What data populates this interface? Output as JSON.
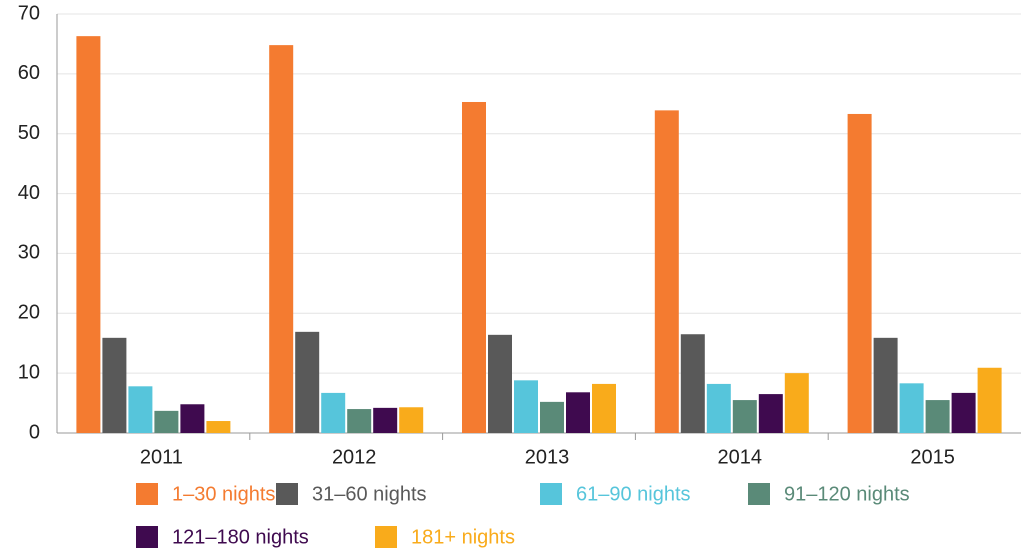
{
  "chart_data": {
    "type": "bar",
    "categories": [
      "2011",
      "2012",
      "2013",
      "2014",
      "2015"
    ],
    "series": [
      {
        "name": "1–30 nights",
        "color": "#f47b30",
        "values": [
          66.3,
          64.8,
          55.3,
          53.9,
          53.3
        ]
      },
      {
        "name": "31–60 nights",
        "color": "#595959",
        "values": [
          15.9,
          16.9,
          16.4,
          16.5,
          15.9
        ]
      },
      {
        "name": "61–90 nights",
        "color": "#56c5db",
        "values": [
          7.8,
          6.7,
          8.8,
          8.2,
          8.3
        ]
      },
      {
        "name": "91–120 nights",
        "color": "#5a8a78",
        "values": [
          3.7,
          4.0,
          5.2,
          5.5,
          5.5
        ]
      },
      {
        "name": "121–180 nights",
        "color": "#3f0a4f",
        "values": [
          4.8,
          4.2,
          6.8,
          6.5,
          6.7
        ]
      },
      {
        "name": "181+ nights",
        "color": "#f9ab1b",
        "values": [
          2.0,
          4.3,
          8.2,
          10.0,
          10.9
        ]
      }
    ],
    "ylim": [
      0,
      70
    ],
    "yticks": [
      0,
      10,
      20,
      30,
      40,
      50,
      60,
      70
    ],
    "grid": true
  }
}
